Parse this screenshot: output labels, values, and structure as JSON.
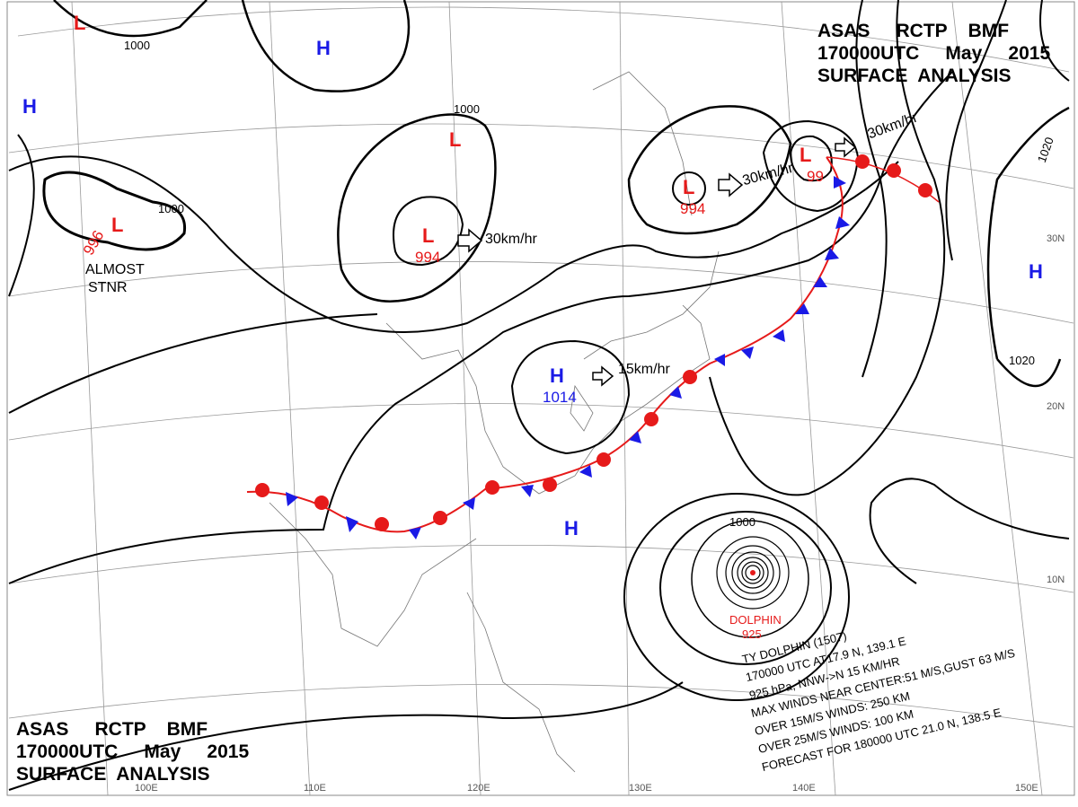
{
  "title": {
    "line1": "ASAS     RCTP    BMF",
    "line2": "170000UTC     May     2015",
    "line3": "SURFACE  ANALYSIS"
  },
  "pressure_centers": [
    {
      "type": "L",
      "value": "996",
      "note1": "ALMOST",
      "note2": "STNR"
    },
    {
      "type": "L",
      "value": "994"
    },
    {
      "type": "L",
      "value": "994"
    },
    {
      "type": "L",
      "value": "99"
    },
    {
      "type": "L",
      "value": ""
    },
    {
      "type": "L",
      "value": ""
    },
    {
      "type": "H",
      "value": "1014"
    },
    {
      "type": "H",
      "value": ""
    },
    {
      "type": "H",
      "value": ""
    },
    {
      "type": "H",
      "value": ""
    },
    {
      "type": "H",
      "value": ""
    }
  ],
  "movements": [
    "30km/hr",
    "30km/hr",
    "30km/hr",
    "15km/hr"
  ],
  "isobar_labels": [
    "1000",
    "1000",
    "1000",
    "1000",
    "1020",
    "1020"
  ],
  "typhoon": {
    "name": "DOLPHIN",
    "pressure": "925",
    "info": [
      "TY DOLPHIN  (1507)",
      "170000 UTC  AT17.9 N, 139.1 E",
      "925 hPa, NNW->N  15 KM/HR",
      "MAX WINDS NEAR CENTER:51 M/S,GUST 63 M/S",
      "OVER 15M/S WINDS: 250 KM",
      "OVER 25M/S WINDS: 100 KM",
      "FORECAST FOR 180000 UTC 21.0 N, 138.5 E"
    ]
  },
  "grid_labels": {
    "lon": [
      "100E",
      "110E",
      "120E",
      "130E",
      "140E",
      "150E"
    ],
    "lat": [
      "30N",
      "20N",
      "10N"
    ]
  },
  "colors": {
    "high": "#1a1ae6",
    "low": "#e61a1a",
    "cold_front": "#1a1ae6",
    "warm_front": "#e61a1a"
  }
}
